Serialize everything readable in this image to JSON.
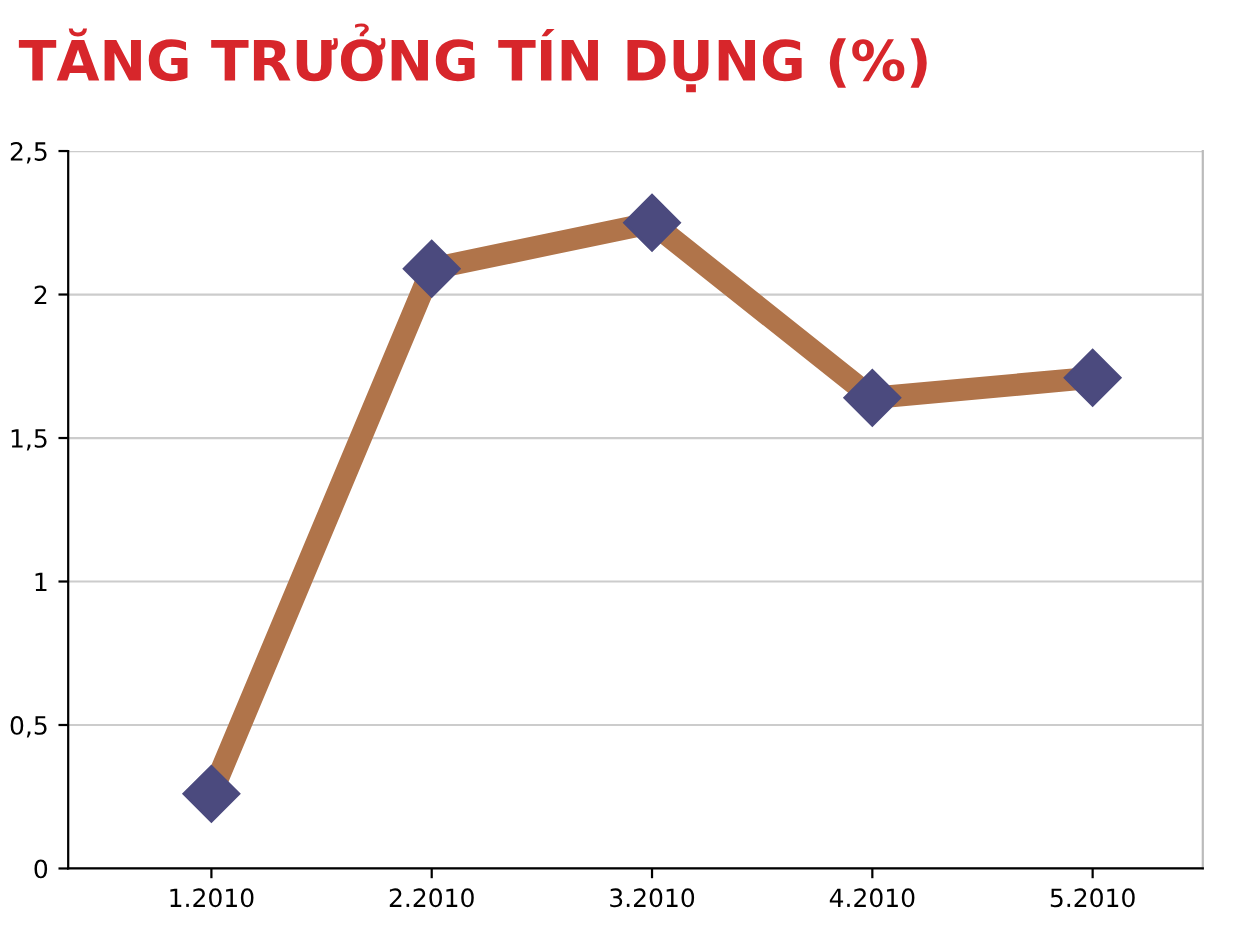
{
  "chart_data": {
    "type": "line",
    "title": "TĂNG TRƯỞNG TÍN DỤNG (%)",
    "categories": [
      "1.2010",
      "2.2010",
      "3.2010",
      "4.2010",
      "5.2010"
    ],
    "series": [
      {
        "color": "#b0744a",
        "values": [
          0.26,
          2.09,
          2.25,
          1.64,
          1.71
        ]
      }
    ],
    "marker": "diamond",
    "line_style": "solid",
    "grid": "y",
    "ylim": [
      0,
      2.5
    ],
    "yticks": [
      {
        "value": 0,
        "label": "0"
      },
      {
        "value": 0.5,
        "label": "0,5"
      },
      {
        "value": 1,
        "label": "1"
      },
      {
        "value": 1.5,
        "label": "1,5"
      },
      {
        "value": 2,
        "label": "2"
      },
      {
        "value": 2.5,
        "label": "2,5"
      }
    ]
  }
}
